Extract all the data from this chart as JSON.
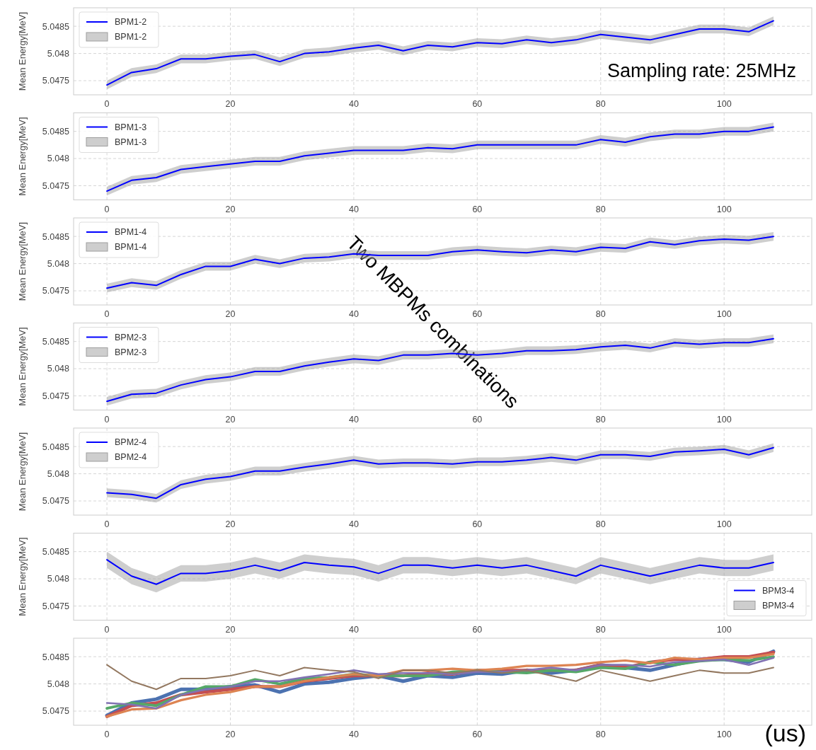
{
  "chart_data": [
    {
      "type": "line",
      "ylabel": "Mean Energy[MeV]",
      "x": [
        0,
        4,
        8,
        12,
        16,
        20,
        24,
        28,
        32,
        36,
        40,
        44,
        48,
        52,
        56,
        60,
        64,
        68,
        72,
        76,
        80,
        84,
        88,
        92,
        96,
        100,
        104,
        108
      ],
      "xlim": [
        -5.4,
        114.2
      ],
      "xticks": [
        0,
        20,
        40,
        60,
        80,
        100
      ],
      "ylim": [
        5.04724,
        5.04884
      ],
      "yticks": [
        5.0475,
        5.048,
        5.0485
      ],
      "grid": true,
      "legend": "top left",
      "annotations": [
        "Sampling rate: 25MHz"
      ],
      "series": [
        {
          "name": "BPM1-2",
          "color": "#0000ff",
          "values": [
            5.04742,
            5.04765,
            5.04772,
            5.0479,
            5.0479,
            5.04795,
            5.04798,
            5.04785,
            5.048,
            5.04803,
            5.0481,
            5.04815,
            5.04805,
            5.04815,
            5.04812,
            5.0482,
            5.04818,
            5.04825,
            5.0482,
            5.04825,
            5.04835,
            5.0483,
            5.04825,
            5.04835,
            5.04845,
            5.04845,
            5.0484,
            5.0486
          ],
          "lower": [
            5.04734,
            5.04757,
            5.04764,
            5.04782,
            5.04782,
            5.04787,
            5.0479,
            5.04777,
            5.04792,
            5.04795,
            5.04802,
            5.04807,
            5.04797,
            5.04807,
            5.04804,
            5.04812,
            5.0481,
            5.04817,
            5.04812,
            5.04817,
            5.04827,
            5.04822,
            5.04817,
            5.04827,
            5.04837,
            5.04837,
            5.04832,
            5.04852
          ],
          "upper": [
            5.0475,
            5.04773,
            5.0478,
            5.04798,
            5.04798,
            5.04803,
            5.04806,
            5.04793,
            5.04808,
            5.04811,
            5.04818,
            5.04823,
            5.04813,
            5.04823,
            5.0482,
            5.04828,
            5.04826,
            5.04833,
            5.04828,
            5.04833,
            5.04843,
            5.04838,
            5.04833,
            5.04843,
            5.04853,
            5.04853,
            5.04848,
            5.04868
          ]
        }
      ]
    },
    {
      "type": "line",
      "ylabel": "Mean Energy[MeV]",
      "x": [
        0,
        4,
        8,
        12,
        16,
        20,
        24,
        28,
        32,
        36,
        40,
        44,
        48,
        52,
        56,
        60,
        64,
        68,
        72,
        76,
        80,
        84,
        88,
        92,
        96,
        100,
        104,
        108
      ],
      "xlim": [
        -5.4,
        114.2
      ],
      "xticks": [
        0,
        20,
        40,
        60,
        80,
        100
      ],
      "ylim": [
        5.04724,
        5.04884
      ],
      "yticks": [
        5.0475,
        5.048,
        5.0485
      ],
      "grid": true,
      "legend": "top left",
      "series": [
        {
          "name": "BPM1-3",
          "color": "#0000ff",
          "values": [
            5.0474,
            5.0476,
            5.04765,
            5.0478,
            5.04785,
            5.0479,
            5.04795,
            5.04795,
            5.04805,
            5.0481,
            5.04815,
            5.04815,
            5.04815,
            5.0482,
            5.04818,
            5.04825,
            5.04825,
            5.04825,
            5.04825,
            5.04825,
            5.04835,
            5.0483,
            5.0484,
            5.04845,
            5.04845,
            5.0485,
            5.0485,
            5.04858
          ],
          "lower": [
            5.04732,
            5.04752,
            5.04757,
            5.04772,
            5.04777,
            5.04782,
            5.04787,
            5.04787,
            5.04797,
            5.04802,
            5.04807,
            5.04807,
            5.04807,
            5.04812,
            5.0481,
            5.04817,
            5.04817,
            5.04817,
            5.04817,
            5.04817,
            5.04827,
            5.04822,
            5.04832,
            5.04837,
            5.04837,
            5.04842,
            5.04842,
            5.0485
          ],
          "upper": [
            5.04748,
            5.04768,
            5.04773,
            5.04788,
            5.04793,
            5.04798,
            5.04803,
            5.04803,
            5.04813,
            5.04818,
            5.04823,
            5.04823,
            5.04823,
            5.04828,
            5.04826,
            5.04833,
            5.04833,
            5.04833,
            5.04833,
            5.04833,
            5.04843,
            5.04838,
            5.04848,
            5.04853,
            5.04853,
            5.04858,
            5.04858,
            5.04866
          ]
        }
      ]
    },
    {
      "type": "line",
      "ylabel": "Mean Energy[MeV]",
      "x": [
        0,
        4,
        8,
        12,
        16,
        20,
        24,
        28,
        32,
        36,
        40,
        44,
        48,
        52,
        56,
        60,
        64,
        68,
        72,
        76,
        80,
        84,
        88,
        92,
        96,
        100,
        104,
        108
      ],
      "xlim": [
        -5.4,
        114.2
      ],
      "xticks": [
        0,
        20,
        40,
        60,
        80,
        100
      ],
      "ylim": [
        5.04724,
        5.04884
      ],
      "yticks": [
        5.0475,
        5.048,
        5.0485
      ],
      "grid": true,
      "legend": "top left",
      "annotations": [
        "Two MBPMs combinations"
      ],
      "series": [
        {
          "name": "BPM1-4",
          "color": "#0000ff",
          "values": [
            5.04755,
            5.04765,
            5.0476,
            5.0478,
            5.04795,
            5.04795,
            5.04808,
            5.048,
            5.0481,
            5.04812,
            5.04818,
            5.04815,
            5.04815,
            5.04815,
            5.04822,
            5.04825,
            5.04822,
            5.0482,
            5.04825,
            5.04822,
            5.0483,
            5.04828,
            5.0484,
            5.04835,
            5.04842,
            5.04845,
            5.04843,
            5.0485
          ],
          "lower": [
            5.04747,
            5.04757,
            5.04752,
            5.04772,
            5.04787,
            5.04787,
            5.048,
            5.04792,
            5.04802,
            5.04804,
            5.0481,
            5.04807,
            5.04807,
            5.04807,
            5.04814,
            5.04817,
            5.04814,
            5.04812,
            5.04817,
            5.04814,
            5.04822,
            5.0482,
            5.04832,
            5.04827,
            5.04834,
            5.04837,
            5.04835,
            5.04842
          ],
          "upper": [
            5.04763,
            5.04773,
            5.04768,
            5.04788,
            5.04803,
            5.04803,
            5.04816,
            5.04808,
            5.04818,
            5.0482,
            5.04826,
            5.04823,
            5.04823,
            5.04823,
            5.0483,
            5.04833,
            5.0483,
            5.04828,
            5.04833,
            5.0483,
            5.04838,
            5.04836,
            5.04848,
            5.04843,
            5.0485,
            5.04853,
            5.04851,
            5.04858
          ]
        }
      ]
    },
    {
      "type": "line",
      "ylabel": "Mean Energy[MeV]",
      "x": [
        0,
        4,
        8,
        12,
        16,
        20,
        24,
        28,
        32,
        36,
        40,
        44,
        48,
        52,
        56,
        60,
        64,
        68,
        72,
        76,
        80,
        84,
        88,
        92,
        96,
        100,
        104,
        108
      ],
      "xlim": [
        -5.4,
        114.2
      ],
      "xticks": [
        0,
        20,
        40,
        60,
        80,
        100
      ],
      "ylim": [
        5.04724,
        5.04884
      ],
      "yticks": [
        5.0475,
        5.048,
        5.0485
      ],
      "grid": true,
      "legend": "top left",
      "series": [
        {
          "name": "BPM2-3",
          "color": "#0000ff",
          "values": [
            5.0474,
            5.04753,
            5.04755,
            5.0477,
            5.0478,
            5.04785,
            5.04795,
            5.04795,
            5.04805,
            5.04812,
            5.04818,
            5.04815,
            5.04825,
            5.04825,
            5.04828,
            5.04825,
            5.04828,
            5.04833,
            5.04833,
            5.04835,
            5.0484,
            5.04843,
            5.04838,
            5.04848,
            5.04845,
            5.04848,
            5.04848,
            5.04855
          ],
          "lower": [
            5.04732,
            5.04745,
            5.04747,
            5.04762,
            5.04772,
            5.04777,
            5.04787,
            5.04787,
            5.04797,
            5.04804,
            5.0481,
            5.04807,
            5.04817,
            5.04817,
            5.0482,
            5.04817,
            5.0482,
            5.04825,
            5.04825,
            5.04827,
            5.04832,
            5.04835,
            5.0483,
            5.0484,
            5.04837,
            5.0484,
            5.0484,
            5.04847
          ],
          "upper": [
            5.04748,
            5.04761,
            5.04763,
            5.04778,
            5.04788,
            5.04793,
            5.04803,
            5.04803,
            5.04813,
            5.0482,
            5.04826,
            5.04823,
            5.04833,
            5.04833,
            5.04836,
            5.04833,
            5.04836,
            5.04841,
            5.04841,
            5.04843,
            5.04848,
            5.04851,
            5.04846,
            5.04856,
            5.04853,
            5.04856,
            5.04856,
            5.04863
          ]
        }
      ]
    },
    {
      "type": "line",
      "ylabel": "Mean Energy[MeV]",
      "x": [
        0,
        4,
        8,
        12,
        16,
        20,
        24,
        28,
        32,
        36,
        40,
        44,
        48,
        52,
        56,
        60,
        64,
        68,
        72,
        76,
        80,
        84,
        88,
        92,
        96,
        100,
        104,
        108
      ],
      "xlim": [
        -5.4,
        114.2
      ],
      "xticks": [
        0,
        20,
        40,
        60,
        80,
        100
      ],
      "ylim": [
        5.04724,
        5.04884
      ],
      "yticks": [
        5.0475,
        5.048,
        5.0485
      ],
      "grid": true,
      "legend": "top left",
      "series": [
        {
          "name": "BPM2-4",
          "color": "#0000ff",
          "values": [
            5.04765,
            5.04762,
            5.04755,
            5.0478,
            5.0479,
            5.04795,
            5.04805,
            5.04805,
            5.04812,
            5.04818,
            5.04825,
            5.04818,
            5.0482,
            5.0482,
            5.04818,
            5.04822,
            5.04822,
            5.04825,
            5.0483,
            5.04825,
            5.04835,
            5.04835,
            5.04832,
            5.0484,
            5.04842,
            5.04845,
            5.04835,
            5.04848
          ],
          "lower": [
            5.04757,
            5.04754,
            5.04747,
            5.04772,
            5.04782,
            5.04787,
            5.04797,
            5.04797,
            5.04804,
            5.0481,
            5.04817,
            5.0481,
            5.04812,
            5.04812,
            5.0481,
            5.04814,
            5.04814,
            5.04817,
            5.04822,
            5.04817,
            5.04827,
            5.04827,
            5.04824,
            5.04832,
            5.04834,
            5.04837,
            5.04827,
            5.0484
          ],
          "upper": [
            5.04773,
            5.0477,
            5.04763,
            5.04788,
            5.04798,
            5.04803,
            5.04813,
            5.04813,
            5.0482,
            5.04826,
            5.04833,
            5.04826,
            5.04828,
            5.04828,
            5.04826,
            5.0483,
            5.0483,
            5.04833,
            5.04838,
            5.04833,
            5.04843,
            5.04843,
            5.0484,
            5.04848,
            5.0485,
            5.04853,
            5.04843,
            5.04856
          ]
        }
      ]
    },
    {
      "type": "line",
      "ylabel": "Mean Energy[MeV]",
      "x": [
        0,
        4,
        8,
        12,
        16,
        20,
        24,
        28,
        32,
        36,
        40,
        44,
        48,
        52,
        56,
        60,
        64,
        68,
        72,
        76,
        80,
        84,
        88,
        92,
        96,
        100,
        104,
        108
      ],
      "xlim": [
        -5.4,
        114.2
      ],
      "xticks": [
        0,
        20,
        40,
        60,
        80,
        100
      ],
      "ylim": [
        5.04724,
        5.04884
      ],
      "yticks": [
        5.0475,
        5.048,
        5.0485
      ],
      "grid": true,
      "legend": "bottom right",
      "series": [
        {
          "name": "BPM3-4",
          "color": "#0000ff",
          "values": [
            5.04835,
            5.04805,
            5.0479,
            5.0481,
            5.0481,
            5.04815,
            5.04825,
            5.04815,
            5.0483,
            5.04825,
            5.04822,
            5.0481,
            5.04825,
            5.04825,
            5.0482,
            5.04825,
            5.0482,
            5.04825,
            5.04815,
            5.04805,
            5.04825,
            5.04815,
            5.04805,
            5.04815,
            5.04825,
            5.0482,
            5.0482,
            5.0483
          ],
          "lower": [
            5.0482,
            5.0479,
            5.04775,
            5.04795,
            5.04795,
            5.048,
            5.0481,
            5.048,
            5.04815,
            5.0481,
            5.04807,
            5.04795,
            5.0481,
            5.0481,
            5.04805,
            5.0481,
            5.04805,
            5.0481,
            5.048,
            5.0479,
            5.0481,
            5.048,
            5.0479,
            5.048,
            5.0481,
            5.04805,
            5.04805,
            5.04815
          ],
          "upper": [
            5.0485,
            5.0482,
            5.04805,
            5.04825,
            5.04825,
            5.0483,
            5.0484,
            5.0483,
            5.04845,
            5.0484,
            5.04837,
            5.04825,
            5.0484,
            5.0484,
            5.04835,
            5.0484,
            5.04835,
            5.0484,
            5.0483,
            5.0482,
            5.0484,
            5.0483,
            5.0482,
            5.0483,
            5.0484,
            5.04835,
            5.04835,
            5.04845
          ]
        }
      ]
    },
    {
      "type": "line",
      "x": [
        0,
        4,
        8,
        12,
        16,
        20,
        24,
        28,
        32,
        36,
        40,
        44,
        48,
        52,
        56,
        60,
        64,
        68,
        72,
        76,
        80,
        84,
        88,
        92,
        96,
        100,
        104,
        108
      ],
      "xlim": [
        -5.4,
        114.2
      ],
      "xticks": [
        0,
        20,
        40,
        60,
        80,
        100
      ],
      "ylim": [
        5.04724,
        5.04884
      ],
      "yticks": [
        5.0475,
        5.048,
        5.0485
      ],
      "grid": true,
      "annotations": [
        "(us)"
      ],
      "series": [
        {
          "color": "#4c72b0",
          "values": [
            5.04742,
            5.04765,
            5.04772,
            5.0479,
            5.0479,
            5.04795,
            5.04798,
            5.04785,
            5.048,
            5.04803,
            5.0481,
            5.04815,
            5.04805,
            5.04815,
            5.04812,
            5.0482,
            5.04818,
            5.04825,
            5.0482,
            5.04825,
            5.04835,
            5.0483,
            5.04825,
            5.04835,
            5.04845,
            5.04845,
            5.0484,
            5.0486
          ]
        },
        {
          "color": "#c44e52",
          "values": [
            5.0474,
            5.0476,
            5.04765,
            5.0478,
            5.04785,
            5.0479,
            5.04795,
            5.04795,
            5.04805,
            5.0481,
            5.04815,
            5.04815,
            5.04815,
            5.0482,
            5.04818,
            5.04825,
            5.04825,
            5.04825,
            5.04825,
            5.04825,
            5.04835,
            5.0483,
            5.0484,
            5.04845,
            5.04845,
            5.0485,
            5.0485,
            5.04858
          ]
        },
        {
          "color": "#55a868",
          "values": [
            5.04755,
            5.04765,
            5.0476,
            5.0478,
            5.04795,
            5.04795,
            5.04808,
            5.048,
            5.0481,
            5.04812,
            5.04818,
            5.04815,
            5.04815,
            5.04815,
            5.04822,
            5.04825,
            5.04822,
            5.0482,
            5.04825,
            5.04822,
            5.0483,
            5.04828,
            5.0484,
            5.04835,
            5.04842,
            5.04845,
            5.04843,
            5.0485
          ]
        },
        {
          "color": "#dd8452",
          "values": [
            5.0474,
            5.04753,
            5.04755,
            5.0477,
            5.0478,
            5.04785,
            5.04795,
            5.04795,
            5.04805,
            5.04812,
            5.04818,
            5.04815,
            5.04825,
            5.04825,
            5.04828,
            5.04825,
            5.04828,
            5.04833,
            5.04833,
            5.04835,
            5.0484,
            5.04843,
            5.04838,
            5.04848,
            5.04845,
            5.04848,
            5.04848,
            5.04855
          ]
        },
        {
          "color": "#8172b3",
          "values": [
            5.04765,
            5.04762,
            5.04755,
            5.0478,
            5.0479,
            5.04795,
            5.04805,
            5.04805,
            5.04812,
            5.04818,
            5.04825,
            5.04818,
            5.0482,
            5.0482,
            5.04818,
            5.04822,
            5.04822,
            5.04825,
            5.0483,
            5.04825,
            5.04835,
            5.04835,
            5.04832,
            5.0484,
            5.04842,
            5.04845,
            5.04835,
            5.04848
          ]
        },
        {
          "color": "#937860",
          "values": [
            5.04835,
            5.04805,
            5.0479,
            5.0481,
            5.0481,
            5.04815,
            5.04825,
            5.04815,
            5.0483,
            5.04825,
            5.04822,
            5.0481,
            5.04825,
            5.04825,
            5.0482,
            5.04825,
            5.0482,
            5.04825,
            5.04815,
            5.04805,
            5.04825,
            5.04815,
            5.04805,
            5.04815,
            5.04825,
            5.0482,
            5.0482,
            5.0483
          ]
        }
      ]
    }
  ]
}
